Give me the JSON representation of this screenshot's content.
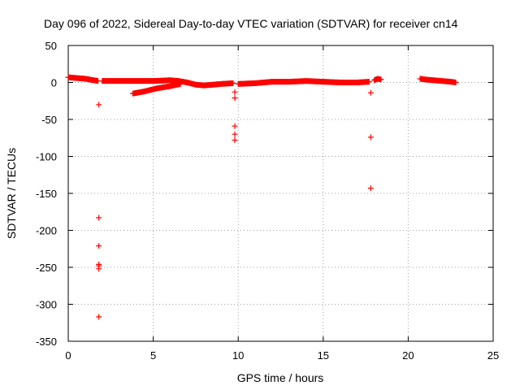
{
  "chart_data": {
    "type": "scatter",
    "title": "Day 096 of 2022, Sidereal Day-to-day VTEC variation (SDTVAR) for receiver cn14",
    "xlabel": "GPS time / hours",
    "ylabel": "SDTVAR / TECUs",
    "xlim": [
      0,
      25
    ],
    "ylim": [
      -350,
      50
    ],
    "xticks": [
      0,
      5,
      10,
      15,
      20,
      25
    ],
    "yticks": [
      50,
      0,
      -50,
      -100,
      -150,
      -200,
      -250,
      -300,
      -350
    ],
    "grid": true,
    "marker": "+",
    "color": "#ff0000",
    "series": [
      {
        "name": "SDTVAR",
        "segments": [
          {
            "x": [
              0.0,
              0.5,
              1.0,
              1.5,
              1.75
            ],
            "y": [
              7,
              6,
              5,
              3,
              2
            ]
          },
          {
            "x": [
              2.0,
              3.0,
              4.0,
              5.0,
              6.0,
              6.5
            ],
            "y": [
              2,
              2,
              2,
              2,
              3,
              2
            ]
          },
          {
            "x": [
              3.8,
              4.5,
              5.2,
              6.0,
              6.6
            ],
            "y": [
              -15,
              -12,
              -8,
              -5,
              -2
            ]
          },
          {
            "x": [
              6.5,
              7.0,
              7.5,
              8.0,
              8.5,
              9.0,
              9.7
            ],
            "y": [
              2,
              0,
              -3,
              -4,
              -3,
              -2,
              -1
            ]
          },
          {
            "x": [
              10.0,
              11.0,
              12.0,
              13.0,
              14.0,
              15.0,
              16.0,
              17.0,
              17.7
            ],
            "y": [
              -2,
              -1,
              1,
              1,
              2,
              1,
              0,
              0,
              1
            ]
          },
          {
            "x": [
              18.0,
              18.2,
              18.4
            ],
            "y": [
              3,
              5,
              4
            ]
          },
          {
            "x": [
              20.7,
              21.0,
              21.5,
              22.0,
              22.5,
              22.8
            ],
            "y": [
              5,
              4,
              3,
              2,
              1,
              0
            ]
          }
        ],
        "outliers": {
          "x": [
            1.8,
            1.8,
            1.8,
            1.8,
            1.8,
            1.8,
            1.8,
            9.8,
            9.8,
            9.8,
            9.8,
            9.8,
            17.8,
            17.8,
            17.8
          ],
          "y": [
            -30,
            -183,
            -221,
            -246,
            -252,
            -248,
            -317,
            -13,
            -21,
            -59,
            -70,
            -78,
            -14,
            -74,
            -143
          ]
        }
      }
    ]
  }
}
